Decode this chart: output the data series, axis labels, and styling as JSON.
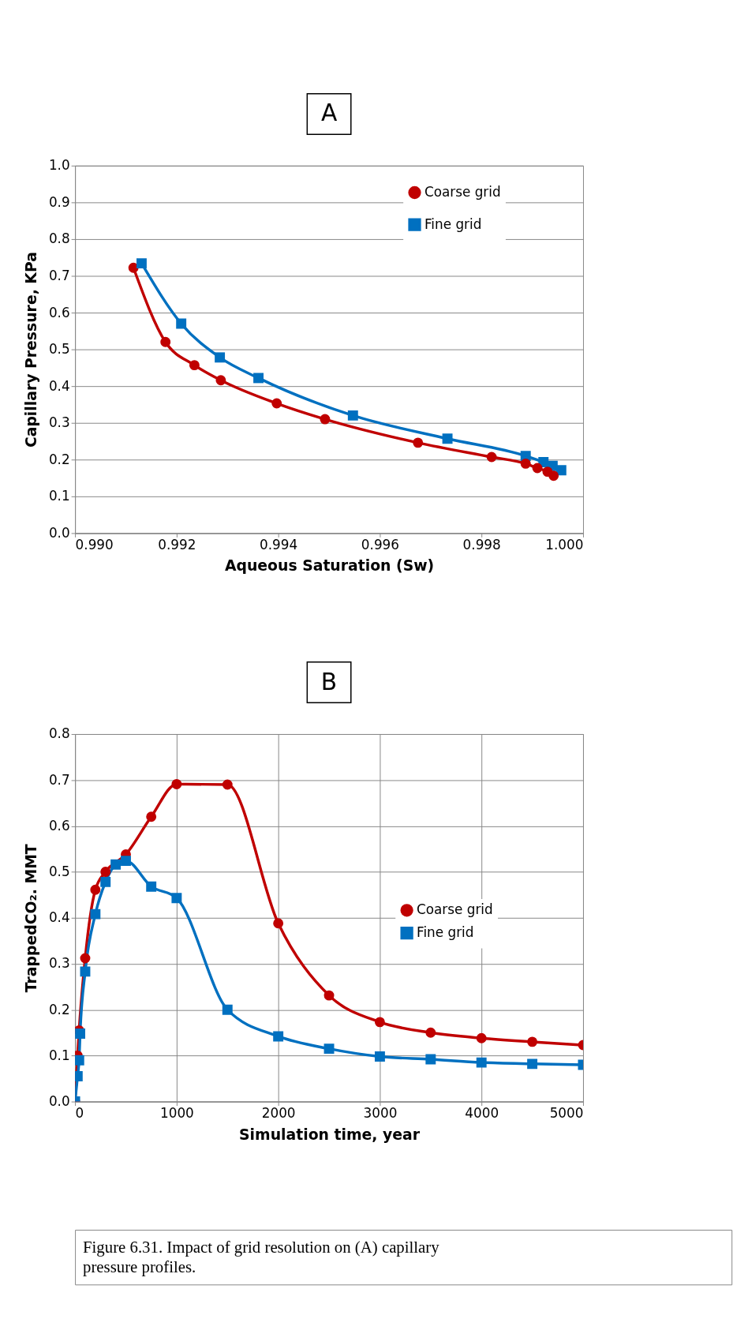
{
  "chart_data": [
    {
      "type": "line",
      "title": "A",
      "xlabel": "Aqueous Saturation (Sw)",
      "ylabel": "Capillary Pressure, KPa",
      "xlim": [
        0.99,
        1.0
      ],
      "xticks": [
        {
          "value": 0.99,
          "label": "0.990"
        },
        {
          "value": 0.992,
          "label": "0.992"
        },
        {
          "value": 0.994,
          "label": "0.994"
        },
        {
          "value": 0.996,
          "label": "0.996"
        },
        {
          "value": 0.998,
          "label": "0.998"
        },
        {
          "value": 1.0,
          "label": "1.000"
        }
      ],
      "ylim": [
        0,
        1.0
      ],
      "yticks": [
        {
          "value": 0,
          "label": "0.0"
        },
        {
          "value": 0.1,
          "label": "0.1"
        },
        {
          "value": 0.2,
          "label": "0.2"
        },
        {
          "value": 0.3,
          "label": "0.3"
        },
        {
          "value": 0.4,
          "label": "0.4"
        },
        {
          "value": 0.5,
          "label": "0.5"
        },
        {
          "value": 0.6,
          "label": "0.6"
        },
        {
          "value": 0.7,
          "label": "0.7"
        },
        {
          "value": 0.8,
          "label": "0.8"
        },
        {
          "value": 0.9,
          "label": "0.9"
        },
        {
          "value": 1.0,
          "label": "1.0"
        }
      ],
      "grid": "y",
      "legend": "top right",
      "series": [
        {
          "name": "Coarse grid",
          "color": "#c00000",
          "marker": "circle",
          "x": [
            0.99115,
            0.99178,
            0.99235,
            0.99287,
            0.99397,
            0.99492,
            0.99675,
            0.9982,
            0.99887,
            0.9991,
            0.9993,
            0.99942
          ],
          "values": [
            0.722,
            0.52,
            0.457,
            0.416,
            0.353,
            0.31,
            0.246,
            0.207,
            0.189,
            0.177,
            0.167,
            0.156
          ]
        },
        {
          "name": "Fine grid",
          "color": "#0070c0",
          "marker": "square",
          "x": [
            0.99131,
            0.99209,
            0.99285,
            0.99361,
            0.99547,
            0.99733,
            0.99887,
            0.99922,
            0.9994,
            0.99957
          ],
          "values": [
            0.734,
            0.57,
            0.478,
            0.422,
            0.32,
            0.257,
            0.21,
            0.193,
            0.183,
            0.171
          ]
        }
      ]
    },
    {
      "type": "line",
      "title": "B",
      "xlabel": "Simulation time, year",
      "ylabel": "TrappedCO₂. MMT",
      "xlim": [
        0,
        5000
      ],
      "xticks": [
        0,
        1000,
        2000,
        3000,
        4000,
        5000
      ],
      "ylim": [
        0,
        0.8
      ],
      "yticks": [
        {
          "value": 0,
          "label": "0.0"
        },
        {
          "value": 0.1,
          "label": "0.1"
        },
        {
          "value": 0.2,
          "label": "0.2"
        },
        {
          "value": 0.3,
          "label": "0.3"
        },
        {
          "value": 0.4,
          "label": "0.4"
        },
        {
          "value": 0.5,
          "label": "0.5"
        },
        {
          "value": 0.6,
          "label": "0.6"
        },
        {
          "value": 0.7,
          "label": "0.7"
        },
        {
          "value": 0.8,
          "label": "0.8"
        }
      ],
      "grid": true,
      "legend": "right",
      "series": [
        {
          "name": "Coarse grid",
          "color": "#c00000",
          "marker": "circle",
          "x": [
            0,
            25,
            40,
            100,
            200,
            300,
            500,
            750,
            1000,
            1500,
            2000,
            2500,
            3000,
            3500,
            4000,
            4500,
            5000
          ],
          "values": [
            0,
            0.1,
            0.155,
            0.312,
            0.461,
            0.5,
            0.538,
            0.62,
            0.691,
            0.69,
            0.388,
            0.231,
            0.173,
            0.15,
            0.138,
            0.13,
            0.123
          ]
        },
        {
          "name": "Fine grid",
          "color": "#0070c0",
          "marker": "square",
          "x": [
            0,
            25,
            40,
            50,
            100,
            200,
            300,
            400,
            500,
            750,
            1000,
            1500,
            2000,
            2500,
            3000,
            3500,
            4000,
            4500,
            5000
          ],
          "values": [
            0,
            0.055,
            0.09,
            0.148,
            0.283,
            0.408,
            0.478,
            0.516,
            0.524,
            0.468,
            0.443,
            0.2,
            0.142,
            0.115,
            0.098,
            0.092,
            0.085,
            0.082,
            0.08
          ]
        }
      ],
      "annotations": [
        "Figure 6.31.  Impact of grid resolution on (A) capillary pressure profiles."
      ]
    }
  ]
}
